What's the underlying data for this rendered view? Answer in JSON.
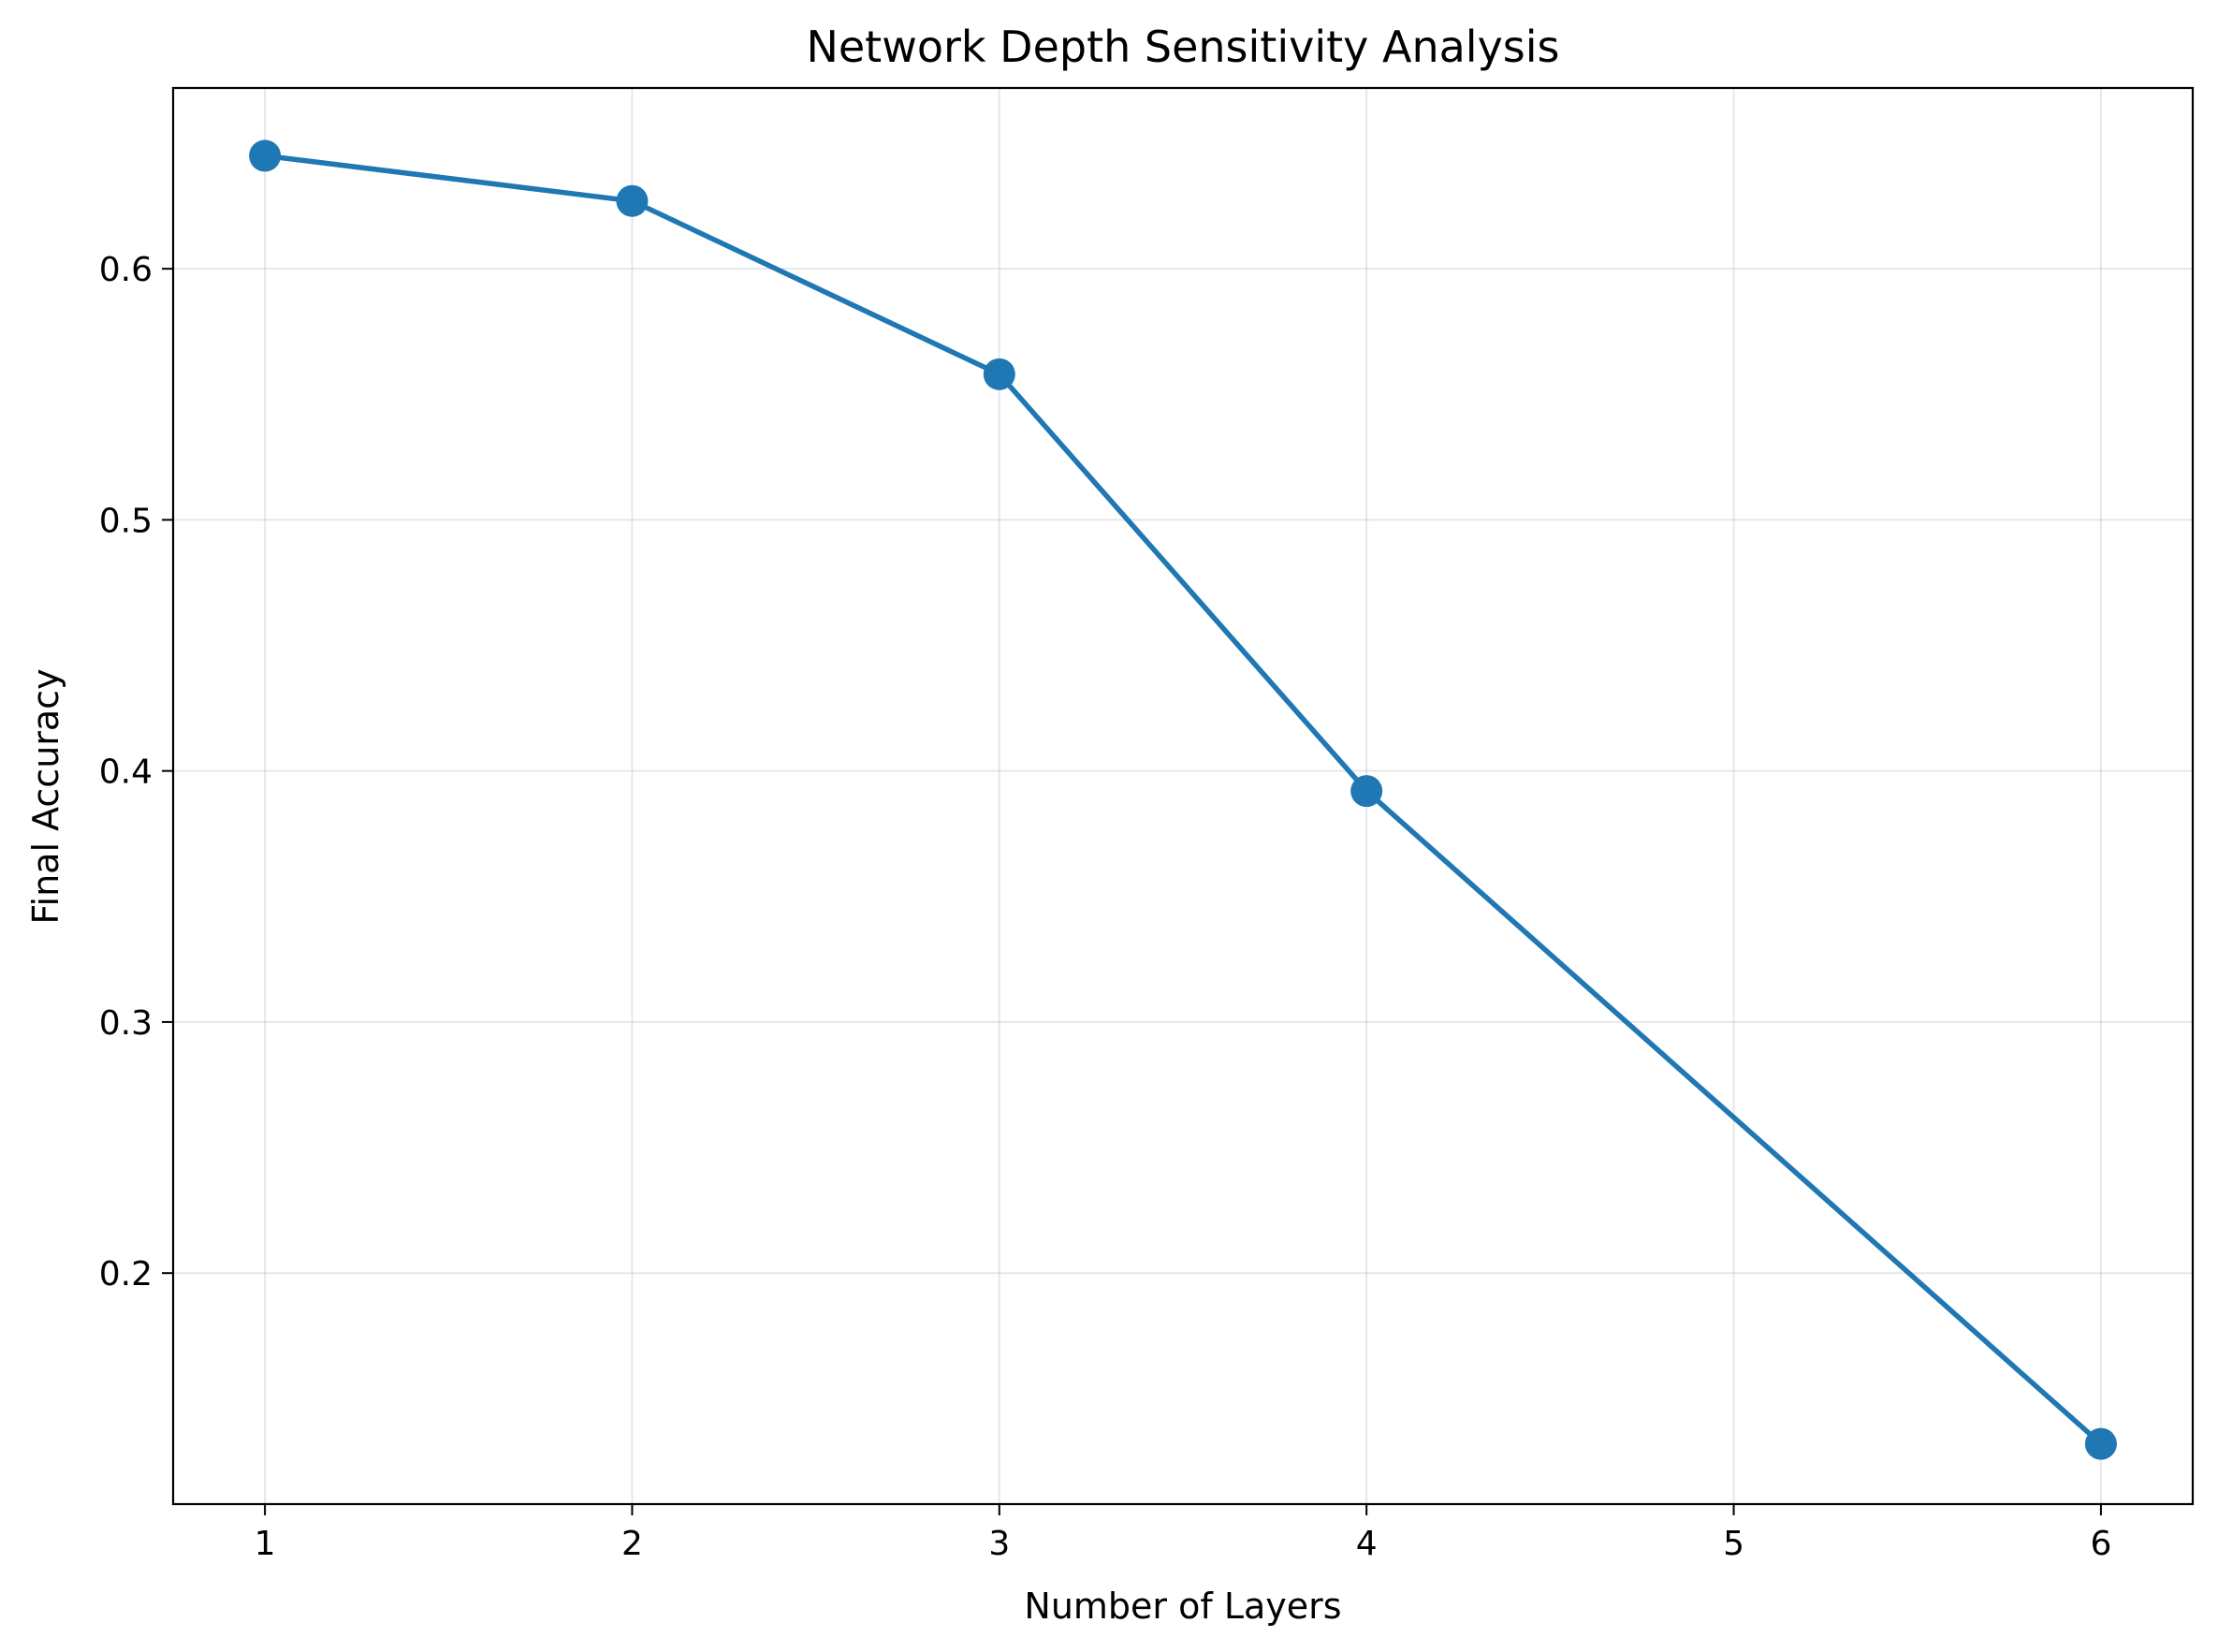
{
  "chart_data": {
    "type": "line",
    "title": "Network Depth Sensitivity Analysis",
    "xlabel": "Number of Layers",
    "ylabel": "Final Accuracy",
    "xlim": [
      0.75,
      6.25
    ],
    "ylim": [
      0.108,
      0.672
    ],
    "xticks": [
      1,
      2,
      3,
      4,
      5,
      6
    ],
    "xtick_labels": [
      "1",
      "2",
      "3",
      "4",
      "5",
      "6"
    ],
    "yticks": [
      0.2,
      0.3,
      0.4,
      0.5,
      0.6
    ],
    "ytick_labels": [
      "0.2",
      "0.3",
      "0.4",
      "0.5",
      "0.6"
    ],
    "grid": true,
    "series": [
      {
        "color": "#1f77b4",
        "marker": "circle",
        "x": [
          1,
          2,
          3,
          4,
          6
        ],
        "y": [
          0.645,
          0.627,
          0.558,
          0.392,
          0.132
        ]
      }
    ]
  }
}
